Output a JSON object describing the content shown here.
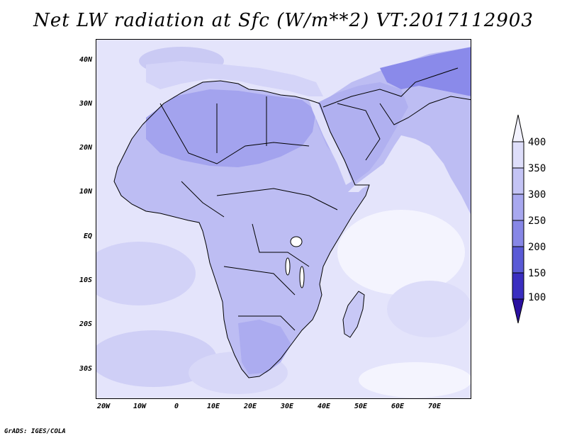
{
  "title": "Net LW radiation at Sfc (W/m**2) VT:2017112903",
  "credit": "GrADS: IGES/COLA",
  "map": {
    "lat_ticks": [
      "40N",
      "30N",
      "20N",
      "10N",
      "EQ",
      "10S",
      "20S",
      "30S"
    ],
    "lon_ticks": [
      "20W",
      "10W",
      "0",
      "10E",
      "20E",
      "30E",
      "40E",
      "50E",
      "60E",
      "70E"
    ],
    "ocean_color": "#e4e4fb",
    "land_color": "#bdbdf3",
    "dry_land_color": "#a3a3ee",
    "cold_high_color": "#8a8aea"
  },
  "colorbar": {
    "labels": [
      "400",
      "350",
      "300",
      "250",
      "200",
      "150",
      "100"
    ],
    "colors": [
      "#f2f2fe",
      "#dedefa",
      "#c4c4f5",
      "#a8a8ef",
      "#8787e6",
      "#5a5ad6",
      "#3a2ec0",
      "#2a10a0"
    ]
  },
  "chart_data": {
    "type": "heatmap",
    "title": "Net LW radiation at Sfc (W/m**2) VT:2017112903",
    "x_range": [
      "20W",
      "80E"
    ],
    "y_range": [
      "37S",
      "45N"
    ],
    "levels": [
      100,
      150,
      200,
      250,
      300,
      350,
      400
    ]
  }
}
